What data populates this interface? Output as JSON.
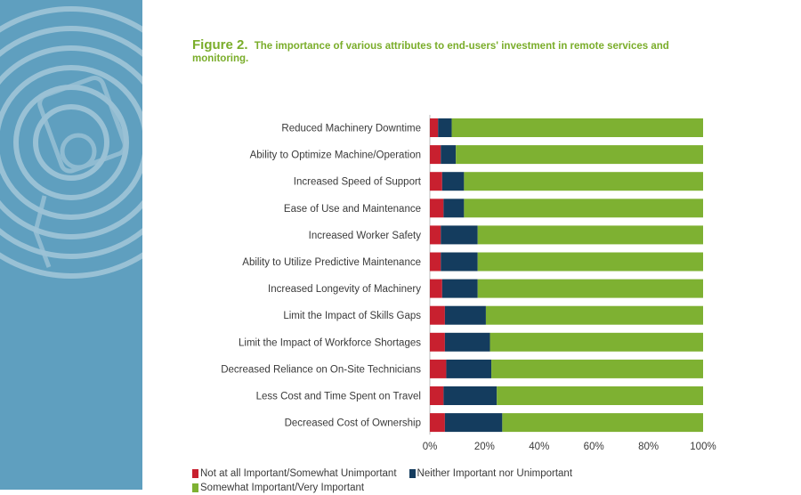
{
  "figure": {
    "label": "Figure 2.",
    "caption": "The importance of various attributes to end-users' investment in remote services and monitoring."
  },
  "colors": {
    "side_panel": "#5f9fbf",
    "not_important": "#c8202f",
    "neither": "#143c5e",
    "important": "#7eb132",
    "title": "#7aad2a"
  },
  "chart_data": {
    "type": "bar",
    "orientation": "horizontal",
    "stacked": true,
    "categories": [
      "Reduced Machinery Downtime",
      "Ability to Optimize Machine/Operation",
      "Increased Speed of Support",
      "Ease of Use and Maintenance",
      "Increased Worker Safety",
      "Ability to Utilize Predictive Maintenance",
      "Increased Longevity of Machinery",
      "Limit the Impact of Skills Gaps",
      "Limit the Impact of Workforce Shortages",
      "Decreased Reliance on On-Site Technicians",
      "Less Cost and Time Spent on Travel",
      "Decreased Cost of Ownership"
    ],
    "series": [
      {
        "name": "Not at all Important/Somewhat Unimportant",
        "color": "#c8202f",
        "values": [
          3,
          4,
          4.5,
          5,
          4,
          4,
          4.5,
          5.5,
          5.5,
          6,
          5,
          5.5
        ]
      },
      {
        "name": "Neither Important nor Unimportant",
        "color": "#143c5e",
        "values": [
          5,
          5.5,
          8,
          7.5,
          13.5,
          13.5,
          13,
          15,
          16.5,
          16.5,
          19.5,
          21
        ]
      },
      {
        "name": "Somewhat Important/Very Important",
        "color": "#7eb132",
        "values": [
          92,
          90.5,
          87.5,
          87.5,
          82.5,
          82.5,
          82.5,
          79.5,
          78,
          77.5,
          75.5,
          73.5
        ]
      }
    ],
    "x_ticks": [
      "0%",
      "20%",
      "40%",
      "60%",
      "80%",
      "100%"
    ],
    "xlim": [
      0,
      100
    ],
    "legend_position": "bottom",
    "grid": false
  },
  "legend": {
    "items": [
      {
        "label": "Not at all Important/Somewhat Unimportant",
        "color": "#c8202f"
      },
      {
        "label": "Neither Important nor Unimportant",
        "color": "#143c5e"
      },
      {
        "label": "Somewhat Important/Very Important",
        "color": "#7eb132"
      }
    ]
  }
}
